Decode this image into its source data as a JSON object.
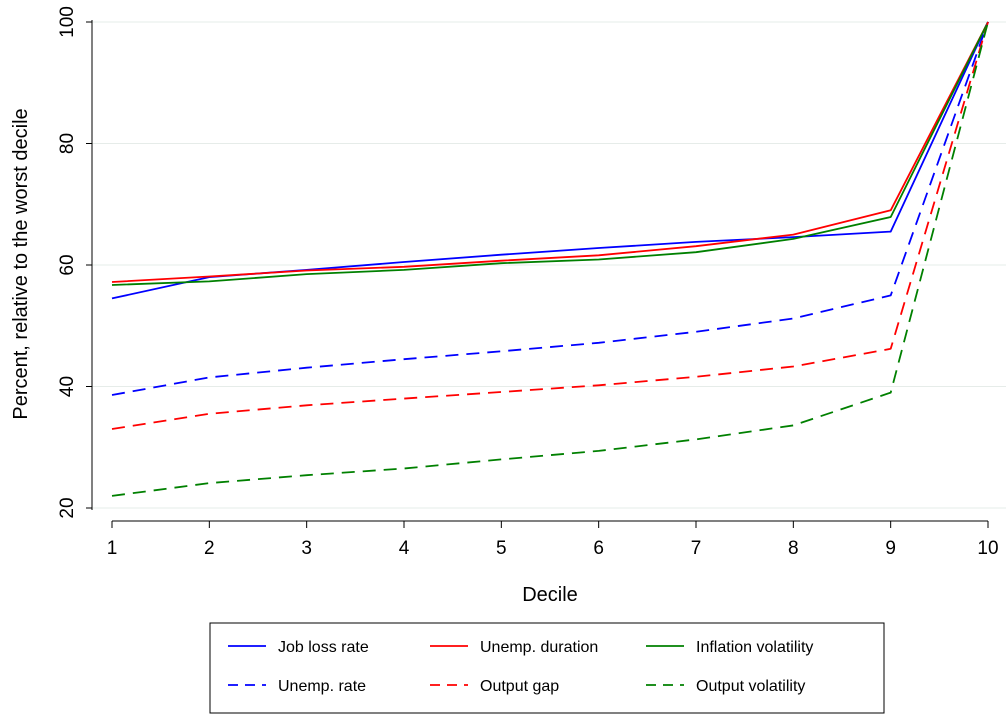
{
  "chart_data": {
    "type": "line",
    "title": "",
    "xlabel": "Decile",
    "ylabel": "Percent, relative to the worst decile",
    "x": [
      1,
      2,
      3,
      4,
      5,
      6,
      7,
      8,
      9,
      10
    ],
    "xticks": [
      "1",
      "2",
      "3",
      "4",
      "5",
      "6",
      "7",
      "8",
      "9",
      "10"
    ],
    "yticks": [
      "20",
      "40",
      "60",
      "80",
      "100"
    ],
    "xlim": [
      1,
      10
    ],
    "ylim": [
      20,
      100
    ],
    "grid": "horizontal",
    "legend_position": "bottom",
    "series": [
      {
        "name": "Job loss rate",
        "color": "#0000ff",
        "dash": "solid",
        "values": [
          54.5,
          58.0,
          59.2,
          60.5,
          61.7,
          62.8,
          63.8,
          64.6,
          65.5,
          100
        ]
      },
      {
        "name": "Unemp. duration",
        "color": "#ff0000",
        "dash": "solid",
        "values": [
          57.2,
          58.1,
          59.1,
          59.7,
          60.7,
          61.6,
          63.1,
          65.0,
          69.0,
          100
        ]
      },
      {
        "name": "Inflation volatility",
        "color": "#008000",
        "dash": "solid",
        "values": [
          56.7,
          57.3,
          58.5,
          59.2,
          60.3,
          60.9,
          62.1,
          64.3,
          67.9,
          100
        ]
      },
      {
        "name": "Unemp. rate",
        "color": "#0000ff",
        "dash": "dashed",
        "values": [
          38.6,
          41.5,
          43.1,
          44.5,
          45.8,
          47.2,
          49.0,
          51.2,
          55.0,
          100
        ]
      },
      {
        "name": "Output gap",
        "color": "#ff0000",
        "dash": "dashed",
        "values": [
          33.0,
          35.5,
          36.9,
          38.0,
          39.1,
          40.2,
          41.6,
          43.3,
          46.2,
          100
        ]
      },
      {
        "name": "Output volatility",
        "color": "#008000",
        "dash": "dashed",
        "values": [
          22.0,
          24.1,
          25.4,
          26.5,
          28.0,
          29.4,
          31.3,
          33.6,
          39.0,
          100
        ]
      }
    ]
  }
}
